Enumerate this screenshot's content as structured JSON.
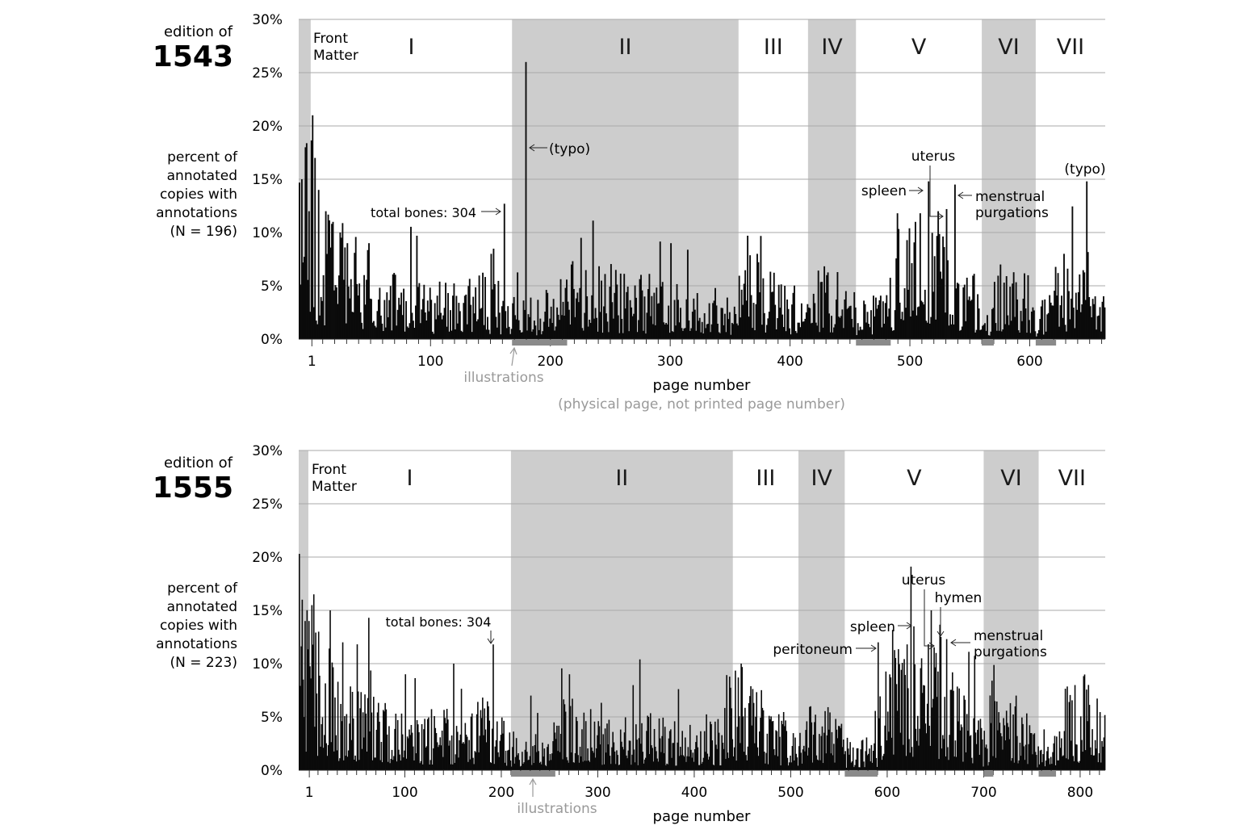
{
  "chart_data": [
    {
      "type": "bar",
      "edition_label": "edition of",
      "edition_year": "1543",
      "ylabel": [
        "percent of",
        "annotated",
        "copies with",
        "annotations",
        "(N = 196)"
      ],
      "xlabel": "page number",
      "xlabel_note": "(physical page, not printed page number)",
      "ylim": [
        0,
        30
      ],
      "yticks": [
        0,
        5,
        10,
        15,
        20,
        25,
        30
      ],
      "ytick_labels": [
        "0%",
        "5%",
        "10%",
        "15%",
        "20%",
        "25%",
        "30%"
      ],
      "xlim": [
        -10,
        663
      ],
      "xticks": [
        1,
        100,
        200,
        300,
        400,
        500,
        600
      ],
      "xtick_labels": [
        "1",
        "100",
        "200",
        "300",
        "400",
        "500",
        "600"
      ],
      "grid": true,
      "sections": [
        {
          "label": "Front Matter",
          "start": -10,
          "end": 0,
          "shaded": true
        },
        {
          "label": "I",
          "start": 0,
          "end": 168,
          "shaded": false
        },
        {
          "label": "II",
          "start": 168,
          "end": 357,
          "shaded": true
        },
        {
          "label": "III",
          "start": 357,
          "end": 415,
          "shaded": false
        },
        {
          "label": "IV",
          "start": 415,
          "end": 455,
          "shaded": true
        },
        {
          "label": "V",
          "start": 455,
          "end": 560,
          "shaded": false
        },
        {
          "label": "VI",
          "start": 560,
          "end": 605,
          "shaded": true
        },
        {
          "label": "VII",
          "start": 605,
          "end": 663,
          "shaded": false
        }
      ],
      "illustrations_label": "illustrations",
      "illustration_ranges": [
        [
          168,
          214
        ],
        [
          455,
          484
        ],
        [
          560,
          570
        ],
        [
          605,
          622
        ]
      ],
      "base_profile": [
        [
          -10,
          10
        ],
        [
          0,
          12
        ],
        [
          5,
          9
        ],
        [
          15,
          7
        ],
        [
          40,
          5
        ],
        [
          60,
          4.5
        ],
        [
          100,
          3
        ],
        [
          140,
          3.5
        ],
        [
          168,
          2.5
        ],
        [
          210,
          2
        ],
        [
          216,
          5.5
        ],
        [
          240,
          4
        ],
        [
          290,
          3.2
        ],
        [
          340,
          2.6
        ],
        [
          356,
          1.5
        ],
        [
          358,
          5
        ],
        [
          380,
          4
        ],
        [
          414,
          2.2
        ],
        [
          417,
          4
        ],
        [
          453,
          2.5
        ],
        [
          458,
          2
        ],
        [
          480,
          2.5
        ],
        [
          488,
          6.5
        ],
        [
          500,
          7.5
        ],
        [
          520,
          6
        ],
        [
          540,
          5
        ],
        [
          555,
          4
        ],
        [
          560,
          1.5
        ],
        [
          565,
          1.5
        ],
        [
          572,
          4
        ],
        [
          600,
          3.5
        ],
        [
          605,
          1.5
        ],
        [
          620,
          3
        ],
        [
          640,
          6
        ],
        [
          648,
          4
        ],
        [
          663,
          2
        ]
      ],
      "spikes": [
        [
          -8,
          15
        ],
        [
          -5,
          18
        ],
        [
          -2,
          12
        ],
        [
          1,
          21
        ],
        [
          3,
          17
        ],
        [
          6,
          14
        ],
        [
          12,
          12
        ],
        [
          18,
          11
        ],
        [
          24,
          10
        ],
        [
          30,
          9
        ],
        [
          48,
          9
        ],
        [
          88,
          9.7
        ],
        [
          150,
          8
        ],
        [
          161,
          12.7
        ],
        [
          179,
          26
        ],
        [
          225,
          9.5
        ],
        [
          300,
          9
        ],
        [
          364,
          9.7
        ],
        [
          372,
          8
        ],
        [
          430,
          6
        ],
        [
          504,
          11
        ],
        [
          515,
          14.8
        ],
        [
          523,
          12
        ],
        [
          530,
          12.2
        ],
        [
          537,
          14.5
        ],
        [
          575,
          7
        ],
        [
          628,
          8
        ],
        [
          647,
          14.8
        ],
        [
          660,
          3.5
        ]
      ],
      "annotations": [
        {
          "text": "total bones: 304",
          "page": 161,
          "value": 12.7
        },
        {
          "text": "(typo)",
          "page": 179,
          "value": 26
        },
        {
          "text": "spleen",
          "page": 515,
          "value": 14.8
        },
        {
          "text": "uterus",
          "page": 530,
          "value": 12.2
        },
        {
          "text": "menstrual",
          "page": 537,
          "value": 14.5
        },
        {
          "text": "purgations",
          "page": 537,
          "value": 14.5
        },
        {
          "text": "(typo)",
          "page": 647,
          "value": 14.8
        }
      ]
    },
    {
      "type": "bar",
      "edition_label": "edition of",
      "edition_year": "1555",
      "ylabel": [
        "percent of",
        "annotated",
        "copies with",
        "annotations",
        "(N = 223)"
      ],
      "xlabel": "page number",
      "xlabel_note": "",
      "ylim": [
        0,
        30
      ],
      "yticks": [
        0,
        5,
        10,
        15,
        20,
        25,
        30
      ],
      "ytick_labels": [
        "0%",
        "5%",
        "10%",
        "15%",
        "20%",
        "25%",
        "30%"
      ],
      "xlim": [
        -10,
        826
      ],
      "xticks": [
        1,
        100,
        200,
        300,
        400,
        500,
        600,
        700,
        800
      ],
      "xtick_labels": [
        "1",
        "100",
        "200",
        "300",
        "400",
        "500",
        "600",
        "700",
        "800"
      ],
      "grid": true,
      "sections": [
        {
          "label": "Front Matter",
          "start": -10,
          "end": 0,
          "shaded": true
        },
        {
          "label": "I",
          "start": 0,
          "end": 210,
          "shaded": false
        },
        {
          "label": "II",
          "start": 210,
          "end": 440,
          "shaded": true
        },
        {
          "label": "III",
          "start": 440,
          "end": 508,
          "shaded": false
        },
        {
          "label": "IV",
          "start": 508,
          "end": 556,
          "shaded": true
        },
        {
          "label": "V",
          "start": 556,
          "end": 700,
          "shaded": false
        },
        {
          "label": "VI",
          "start": 700,
          "end": 757,
          "shaded": true
        },
        {
          "label": "VII",
          "start": 757,
          "end": 826,
          "shaded": false
        }
      ],
      "illustrations_label": "illustrations",
      "illustration_ranges": [
        [
          210,
          256
        ],
        [
          556,
          590
        ],
        [
          700,
          710
        ],
        [
          757,
          775
        ]
      ],
      "base_profile": [
        [
          -10,
          9
        ],
        [
          0,
          10
        ],
        [
          10,
          7
        ],
        [
          30,
          5
        ],
        [
          60,
          4
        ],
        [
          100,
          3
        ],
        [
          150,
          3.2
        ],
        [
          190,
          4
        ],
        [
          210,
          2
        ],
        [
          250,
          1.8
        ],
        [
          258,
          4.5
        ],
        [
          280,
          3.5
        ],
        [
          330,
          3
        ],
        [
          380,
          2.8
        ],
        [
          430,
          3
        ],
        [
          440,
          6
        ],
        [
          470,
          4
        ],
        [
          506,
          2
        ],
        [
          510,
          4
        ],
        [
          550,
          3
        ],
        [
          556,
          1.5
        ],
        [
          590,
          2
        ],
        [
          594,
          6
        ],
        [
          620,
          7
        ],
        [
          650,
          6.5
        ],
        [
          680,
          5
        ],
        [
          698,
          2.5
        ],
        [
          702,
          1.5
        ],
        [
          712,
          4
        ],
        [
          740,
          3.5
        ],
        [
          757,
          1.5
        ],
        [
          770,
          2
        ],
        [
          790,
          5
        ],
        [
          826,
          3
        ]
      ],
      "spikes": [
        [
          -10,
          20.3
        ],
        [
          -7,
          16
        ],
        [
          -4,
          14
        ],
        [
          0,
          14
        ],
        [
          5,
          16.5
        ],
        [
          10,
          13
        ],
        [
          22,
          15
        ],
        [
          35,
          12
        ],
        [
          62,
          14.3
        ],
        [
          100,
          9
        ],
        [
          150,
          10
        ],
        [
          191,
          11.8
        ],
        [
          230,
          7
        ],
        [
          270,
          9
        ],
        [
          343,
          10.4
        ],
        [
          448,
          10
        ],
        [
          520,
          6
        ],
        [
          590,
          12
        ],
        [
          627,
          13.5
        ],
        [
          635,
          10.5
        ],
        [
          645,
          15
        ],
        [
          650,
          11
        ],
        [
          655,
          12.5
        ],
        [
          661,
          12.3
        ],
        [
          733,
          7
        ],
        [
          808,
          8
        ]
      ],
      "annotations": [
        {
          "text": "total bones: 304",
          "page": 191,
          "value": 11.8
        },
        {
          "text": "peritoneum",
          "page": 590,
          "value": 12
        },
        {
          "text": "spleen",
          "page": 627,
          "value": 13.5
        },
        {
          "text": "uterus",
          "page": 645,
          "value": 15
        },
        {
          "text": "hymen",
          "page": 655,
          "value": 12.5
        },
        {
          "text": "menstrual",
          "page": 661,
          "value": 12.3
        },
        {
          "text": "purgations",
          "page": 661,
          "value": 12.3
        }
      ]
    }
  ]
}
